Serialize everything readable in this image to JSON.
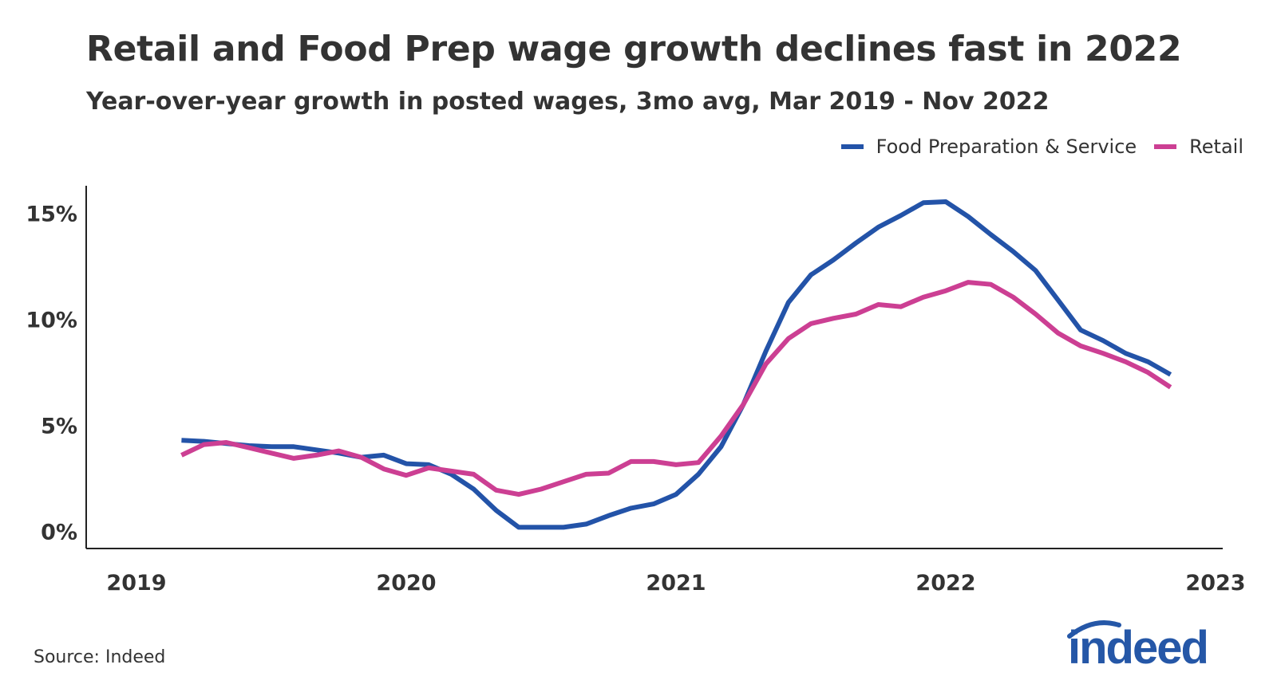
{
  "title": "Retail and Food Prep wage growth declines fast in 2022",
  "subtitle": "Year-over-year growth in posted wages, 3mo avg, Mar 2019 - Nov 2022",
  "source": "Source: Indeed",
  "logo_text": "indeed",
  "colors": {
    "food": "#2353a8",
    "retail": "#cc3f93",
    "axis": "#222222",
    "text": "#333333",
    "logo": "#2557a7"
  },
  "chart_data": {
    "type": "line",
    "title": "Retail and Food Prep wage growth declines fast in 2022",
    "subtitle": "Year-over-year growth in posted wages, 3mo avg, Mar 2019 - Nov 2022",
    "xlabel": "",
    "ylabel": "",
    "x_ticks": [
      2019,
      2020,
      2021,
      2022,
      2023
    ],
    "x_tick_labels": [
      "2019",
      "2020",
      "2021",
      "2022",
      "2023"
    ],
    "y_ticks": [
      0,
      5,
      10,
      15
    ],
    "y_tick_labels": [
      "0%",
      "5%",
      "10%",
      "15%"
    ],
    "xlim": [
      2019,
      2023
    ],
    "ylim": [
      -0.8,
      16.3
    ],
    "grid": false,
    "legend_position": "top-right",
    "x": [
      2019.167,
      2019.25,
      2019.333,
      2019.417,
      2019.5,
      2019.583,
      2019.667,
      2019.75,
      2019.833,
      2019.917,
      2020.0,
      2020.083,
      2020.167,
      2020.25,
      2020.333,
      2020.417,
      2020.5,
      2020.583,
      2020.667,
      2020.75,
      2020.833,
      2020.917,
      2021.0,
      2021.083,
      2021.167,
      2021.25,
      2021.333,
      2021.417,
      2021.5,
      2021.583,
      2021.667,
      2021.75,
      2021.833,
      2021.917,
      2022.0,
      2022.083,
      2022.167,
      2022.25,
      2022.333,
      2022.417,
      2022.5,
      2022.583,
      2022.667,
      2022.75,
      2022.833
    ],
    "series": [
      {
        "name": "Food Preparation & Service",
        "color": "#2353a8",
        "values": [
          4.3,
          4.25,
          4.15,
          4.05,
          4.0,
          4.0,
          3.85,
          3.7,
          3.5,
          3.6,
          3.2,
          3.15,
          2.7,
          2.0,
          1.0,
          0.2,
          0.2,
          0.2,
          0.35,
          0.75,
          1.1,
          1.3,
          1.75,
          2.7,
          4.0,
          6.0,
          8.5,
          10.8,
          12.1,
          12.8,
          13.6,
          14.35,
          14.9,
          15.5,
          15.55,
          14.85,
          14.0,
          13.2,
          12.3,
          10.9,
          9.5,
          9.0,
          8.4,
          8.0,
          7.4
        ]
      },
      {
        "name": "Retail",
        "color": "#cc3f93",
        "values": [
          3.6,
          4.1,
          4.2,
          3.95,
          3.7,
          3.45,
          3.6,
          3.8,
          3.5,
          2.95,
          2.65,
          3.0,
          2.85,
          2.7,
          1.95,
          1.75,
          2.0,
          2.35,
          2.7,
          2.75,
          3.3,
          3.3,
          3.15,
          3.25,
          4.5,
          6.0,
          7.9,
          9.1,
          9.8,
          10.05,
          10.25,
          10.7,
          10.6,
          11.05,
          11.35,
          11.75,
          11.65,
          11.05,
          10.25,
          9.35,
          8.75,
          8.4,
          8.0,
          7.5,
          6.8
        ]
      }
    ]
  }
}
